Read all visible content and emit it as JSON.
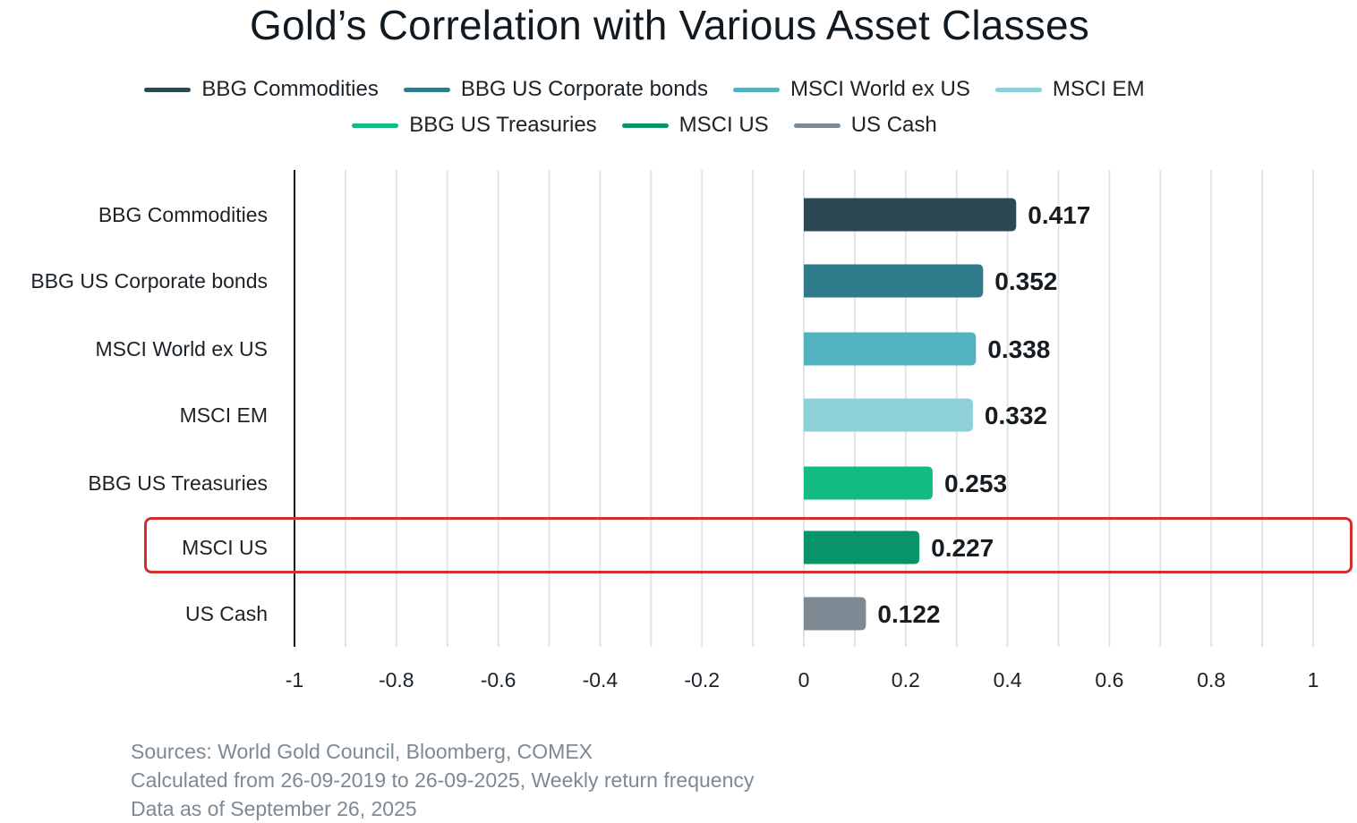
{
  "chart_data": {
    "type": "bar",
    "orientation": "horizontal",
    "title": "Gold’s Correlation with Various Asset Classes",
    "categories": [
      "BBG Commodities",
      "BBG US Corporate bonds",
      "MSCI World ex US",
      "MSCI EM",
      "BBG US Treasuries",
      "MSCI US",
      "US Cash"
    ],
    "values": [
      0.417,
      0.352,
      0.338,
      0.332,
      0.253,
      0.227,
      0.122
    ],
    "value_labels": [
      "0.417",
      "0.352",
      "0.338",
      "0.332",
      "0.253",
      "0.227",
      "0.122"
    ],
    "colors": [
      "#2b4853",
      "#2f7a8b",
      "#52b2c0",
      "#8dd0d7",
      "#13bb84",
      "#07946a",
      "#7d8a93"
    ],
    "xlabel": "",
    "ylabel": "",
    "xlim": [
      -1,
      1
    ],
    "x_ticks": [
      -1,
      -0.8,
      -0.6,
      -0.4,
      -0.2,
      0,
      0.2,
      0.4,
      0.6,
      0.8,
      1
    ],
    "x_tick_labels": [
      "-1",
      "-0.8",
      "-0.6",
      "-0.4",
      "-0.2",
      "0",
      "0.2",
      "0.4",
      "0.6",
      "0.8",
      "1"
    ],
    "grid": "vertical lines every 0.1",
    "legend_position": "top-center",
    "legend": [
      {
        "label": "BBG Commodities",
        "color": "#2b4853"
      },
      {
        "label": "BBG US Corporate bonds",
        "color": "#2f7a8b"
      },
      {
        "label": "MSCI World ex US",
        "color": "#52b2c0"
      },
      {
        "label": "MSCI EM",
        "color": "#8dd0d7"
      },
      {
        "label": "BBG US Treasuries",
        "color": "#13bb84"
      },
      {
        "label": "MSCI US",
        "color": "#07946a"
      },
      {
        "label": "US Cash",
        "color": "#7d8a93"
      }
    ],
    "highlighted_category": "MSCI US",
    "highlight_color": "#d32f2f"
  },
  "footnotes": [
    "Sources: World Gold Council, Bloomberg, COMEX",
    "Calculated from 26-09-2019 to 26-09-2025, Weekly return frequency",
    "Data as of September 26, 2025"
  ]
}
